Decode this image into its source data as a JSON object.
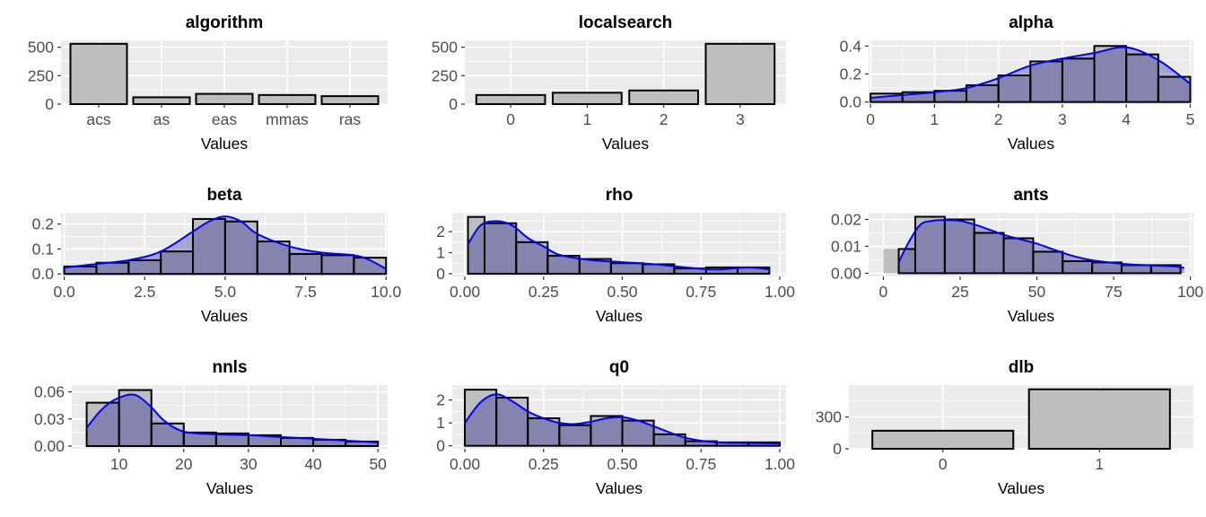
{
  "colors": {
    "panel_bg": "#ebebeb",
    "grid": "#ffffff",
    "bar_fill": "#bebebe",
    "bar_stroke": "#000000",
    "density_fill": "#00008b",
    "density_line": "#0000ff"
  },
  "chart_data": [
    {
      "name": "algorithm",
      "type": "bar",
      "title": "algorithm",
      "xlabel": "Values",
      "categories": [
        "acs",
        "as",
        "eas",
        "mmas",
        "ras"
      ],
      "values": [
        530,
        60,
        90,
        80,
        70
      ],
      "ylim": [
        0,
        560
      ],
      "yticks": [
        0,
        250,
        500
      ],
      "ytick_labels": [
        "0",
        "250",
        "500"
      ]
    },
    {
      "name": "localsearch",
      "type": "bar",
      "title": "localsearch",
      "xlabel": "Values",
      "categories": [
        "0",
        "1",
        "2",
        "3"
      ],
      "values": [
        80,
        100,
        120,
        530
      ],
      "ylim": [
        0,
        560
      ],
      "yticks": [
        0,
        250,
        500
      ],
      "ytick_labels": [
        "0",
        "250",
        "500"
      ]
    },
    {
      "name": "alpha",
      "type": "histogram",
      "title": "alpha",
      "xlabel": "Values",
      "bin_edges": [
        0,
        0.5,
        1,
        1.5,
        2,
        2.5,
        3,
        3.5,
        4,
        4.5,
        5
      ],
      "values": [
        0.06,
        0.07,
        0.08,
        0.12,
        0.19,
        0.29,
        0.31,
        0.4,
        0.34,
        0.18
      ],
      "density": {
        "x": [
          0,
          0.5,
          1,
          1.5,
          2,
          2.5,
          3,
          3.5,
          4,
          4.5,
          5
        ],
        "y": [
          0.03,
          0.05,
          0.07,
          0.1,
          0.17,
          0.26,
          0.31,
          0.35,
          0.39,
          0.3,
          0.13
        ]
      },
      "xlim": [
        -0.03,
        5.05
      ],
      "ylim": [
        -0.015,
        0.44
      ],
      "xticks": [
        0,
        1,
        2,
        3,
        4,
        5
      ],
      "xtick_labels": [
        "0",
        "1",
        "2",
        "3",
        "4",
        "5"
      ],
      "yticks": [
        0,
        0.2,
        0.4
      ],
      "ytick_labels": [
        "0.0",
        "0.2",
        "0.4"
      ]
    },
    {
      "name": "beta",
      "type": "histogram",
      "title": "beta",
      "xlabel": "Values",
      "bin_edges": [
        0,
        1,
        2,
        3,
        4,
        5,
        6,
        7,
        8,
        9,
        10
      ],
      "values": [
        0.03,
        0.045,
        0.055,
        0.09,
        0.22,
        0.21,
        0.13,
        0.08,
        0.075,
        0.065
      ],
      "density": {
        "x": [
          0,
          1,
          2,
          3,
          4,
          4.5,
          5,
          5.5,
          6,
          7,
          8,
          9,
          9.5,
          10
        ],
        "y": [
          0.025,
          0.04,
          0.055,
          0.09,
          0.17,
          0.21,
          0.23,
          0.21,
          0.16,
          0.11,
          0.085,
          0.075,
          0.055,
          0.02
        ]
      },
      "xlim": [
        -0.1,
        10.05
      ],
      "ylim": [
        -0.01,
        0.245
      ],
      "xticks": [
        0,
        2.5,
        5,
        7.5,
        10
      ],
      "xtick_labels": [
        "0.0",
        "2.5",
        "5.0",
        "7.5",
        "10.0"
      ],
      "yticks": [
        0,
        0.1,
        0.2
      ],
      "ytick_labels": [
        "0.0",
        "0.1",
        "0.2"
      ]
    },
    {
      "name": "rho",
      "type": "histogram",
      "title": "rho",
      "xlabel": "Values",
      "bin_edges": [
        0.01,
        0.0625,
        0.163,
        0.263,
        0.364,
        0.464,
        0.565,
        0.665,
        0.766,
        0.866,
        0.967
      ],
      "values": [
        2.7,
        2.4,
        1.5,
        0.85,
        0.7,
        0.5,
        0.45,
        0.25,
        0.3,
        0.3
      ],
      "overlay": [
        {
          "x0": 0.0625,
          "x1": 0.0625,
          "value": 2.7
        }
      ],
      "density": {
        "x": [
          0.01,
          0.05,
          0.1,
          0.15,
          0.2,
          0.25,
          0.3,
          0.4,
          0.5,
          0.6,
          0.7,
          0.8,
          0.9,
          0.967
        ],
        "y": [
          1.4,
          2.3,
          2.5,
          2.3,
          1.7,
          1.3,
          0.9,
          0.65,
          0.55,
          0.45,
          0.3,
          0.2,
          0.3,
          0.2
        ]
      },
      "xlim": [
        -0.04,
        1.02
      ],
      "ylim": [
        -0.13,
        2.9
      ],
      "xticks": [
        0,
        0.25,
        0.5,
        0.75,
        1
      ],
      "xtick_labels": [
        "0.00",
        "0.25",
        "0.50",
        "0.75",
        "1.00"
      ],
      "yticks": [
        0,
        1,
        2
      ],
      "ytick_labels": [
        "0",
        "1",
        "2"
      ]
    },
    {
      "name": "ants",
      "type": "histogram",
      "title": "ants",
      "xlabel": "Values",
      "bin_edges": [
        5,
        10.4,
        20,
        29.6,
        39.2,
        48.8,
        58.4,
        68,
        77.6,
        87.2,
        96.8
      ],
      "values": [
        0.009,
        0.021,
        0.02,
        0.015,
        0.013,
        0.008,
        0.0045,
        0.004,
        0.003,
        0.003
      ],
      "overlay": [
        {
          "x0": 0,
          "x1": 5,
          "value": 0.009
        }
      ],
      "density": {
        "x": [
          5,
          8,
          12,
          16,
          20,
          25,
          30,
          35,
          40,
          45,
          50,
          55,
          60,
          65,
          70,
          75,
          80,
          85,
          90,
          95,
          98
        ],
        "y": [
          0.004,
          0.011,
          0.018,
          0.0195,
          0.0198,
          0.0195,
          0.018,
          0.016,
          0.014,
          0.0125,
          0.011,
          0.009,
          0.007,
          0.0055,
          0.0045,
          0.0038,
          0.0033,
          0.003,
          0.0028,
          0.0025,
          0.002
        ]
      },
      "xlim": [
        -4.8,
        101
      ],
      "ylim": [
        -0.0012,
        0.0225
      ],
      "xticks": [
        0,
        25,
        50,
        75,
        100
      ],
      "xtick_labels": [
        "0",
        "25",
        "50",
        "75",
        "100"
      ],
      "yticks": [
        0,
        0.01,
        0.02
      ],
      "ytick_labels": [
        "0.00",
        "0.01",
        "0.02"
      ]
    },
    {
      "name": "nnls",
      "type": "histogram",
      "title": "nnls",
      "xlabel": "Values",
      "bin_edges": [
        5,
        10,
        15,
        20,
        25,
        30,
        35,
        40,
        45,
        50
      ],
      "values": [
        0.048,
        0.062,
        0.025,
        0.015,
        0.014,
        0.012,
        0.009,
        0.007,
        0.005
      ],
      "density": {
        "x": [
          5,
          7,
          9,
          11,
          12,
          13,
          15,
          17,
          20,
          25,
          30,
          35,
          40,
          45,
          50
        ],
        "y": [
          0.02,
          0.038,
          0.05,
          0.056,
          0.057,
          0.055,
          0.043,
          0.028,
          0.016,
          0.013,
          0.012,
          0.01,
          0.008,
          0.006,
          0.004
        ]
      },
      "xlim": [
        2.7,
        51.5
      ],
      "ylim": [
        -0.003,
        0.0675
      ],
      "xticks": [
        10,
        20,
        30,
        40,
        50
      ],
      "xtick_labels": [
        "10",
        "20",
        "30",
        "40",
        "50"
      ],
      "yticks": [
        0,
        0.03,
        0.06
      ],
      "ytick_labels": [
        "0.00",
        "0.03",
        "0.06"
      ]
    },
    {
      "name": "q0",
      "type": "histogram",
      "title": "q0",
      "xlabel": "Values",
      "bin_edges": [
        0.0,
        0.1,
        0.2,
        0.3,
        0.4,
        0.5,
        0.6,
        0.7,
        0.8,
        0.9,
        1.0
      ],
      "values": [
        2.45,
        2.1,
        1.2,
        0.9,
        1.3,
        1.1,
        0.5,
        0.2,
        0.15,
        0.15
      ],
      "overlay": [
        {
          "x0": 0.0,
          "x1": 0.1,
          "value": 2.45
        }
      ],
      "density": {
        "x": [
          0.0,
          0.05,
          0.1,
          0.15,
          0.2,
          0.25,
          0.3,
          0.35,
          0.4,
          0.45,
          0.5,
          0.55,
          0.6,
          0.7,
          0.8,
          0.9,
          1.0
        ],
        "y": [
          1.0,
          1.9,
          2.25,
          1.95,
          1.5,
          1.2,
          1.0,
          0.95,
          1.05,
          1.2,
          1.25,
          1.1,
          0.85,
          0.35,
          0.15,
          0.12,
          0.1
        ]
      },
      "xlim": [
        -0.04,
        1.02
      ],
      "ylim": [
        -0.13,
        2.65
      ],
      "xticks": [
        0,
        0.25,
        0.5,
        0.75,
        1
      ],
      "xtick_labels": [
        "0.00",
        "0.25",
        "0.50",
        "0.75",
        "1.00"
      ],
      "yticks": [
        0,
        1,
        2
      ],
      "ytick_labels": [
        "0",
        "1",
        "2"
      ]
    },
    {
      "name": "dlb",
      "type": "bar",
      "title": "dlb",
      "xlabel": "Values",
      "categories": [
        "0",
        "1"
      ],
      "values": [
        170,
        560
      ],
      "ylim": [
        0,
        600
      ],
      "yticks": [
        0,
        300
      ],
      "ytick_labels": [
        "0",
        "300"
      ]
    }
  ]
}
